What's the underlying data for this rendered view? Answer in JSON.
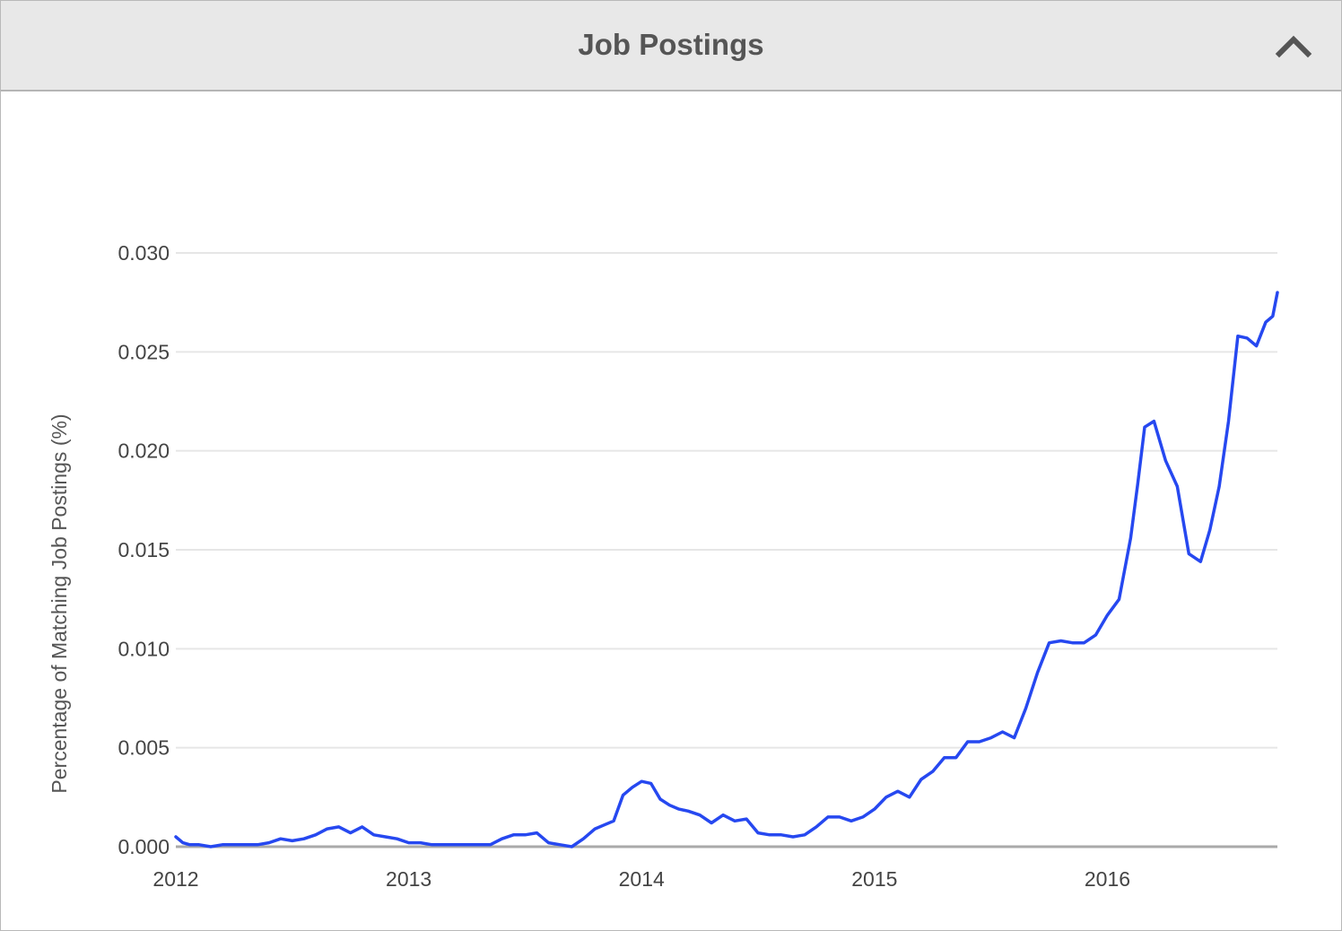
{
  "header": {
    "title": "Job Postings",
    "collapse_icon": "chevron-up-icon"
  },
  "colors": {
    "line": "#2648f0",
    "grid": "#e6e6e6",
    "axis": "#aaaaaa",
    "header_bg": "#e8e8e8"
  },
  "chart_data": {
    "type": "line",
    "title": "",
    "xlabel": "",
    "ylabel": "Percentage of Matching Job Postings (%)",
    "xlim": [
      2012.0,
      2016.73
    ],
    "ylim": [
      0,
      0.03
    ],
    "x_ticks": [
      "2012",
      "2013",
      "2014",
      "2015",
      "2016"
    ],
    "y_ticks": [
      "0.000",
      "0.005",
      "0.010",
      "0.015",
      "0.020",
      "0.025",
      "0.030"
    ],
    "grid": true,
    "legend": "none",
    "series": [
      {
        "x": [
          2012.0,
          2012.03,
          2012.06,
          2012.1,
          2012.15,
          2012.2,
          2012.25,
          2012.3,
          2012.35,
          2012.4,
          2012.45,
          2012.5,
          2012.55,
          2012.6,
          2012.65,
          2012.7,
          2012.75,
          2012.8,
          2012.85,
          2012.9,
          2012.95,
          2013.0,
          2013.05,
          2013.1,
          2013.15,
          2013.2,
          2013.25,
          2013.3,
          2013.35,
          2013.4,
          2013.45,
          2013.5,
          2013.55,
          2013.6,
          2013.65,
          2013.7,
          2013.75,
          2013.8,
          2013.84,
          2013.88,
          2013.92,
          2013.96,
          2014.0,
          2014.04,
          2014.08,
          2014.12,
          2014.16,
          2014.2,
          2014.25,
          2014.3,
          2014.35,
          2014.4,
          2014.45,
          2014.5,
          2014.55,
          2014.6,
          2014.65,
          2014.7,
          2014.75,
          2014.8,
          2014.85,
          2014.9,
          2014.95,
          2015.0,
          2015.05,
          2015.1,
          2015.15,
          2015.2,
          2015.25,
          2015.3,
          2015.35,
          2015.4,
          2015.45,
          2015.5,
          2015.55,
          2015.6,
          2015.65,
          2015.7,
          2015.75,
          2015.8,
          2015.85,
          2015.9,
          2015.95,
          2016.0,
          2016.05,
          2016.1,
          2016.13,
          2016.16,
          2016.2,
          2016.25,
          2016.3,
          2016.35,
          2016.4,
          2016.44,
          2016.48,
          2016.52,
          2016.56,
          2016.6,
          2016.64,
          2016.68,
          2016.71,
          2016.73
        ],
        "y": [
          0.0005,
          0.0002,
          0.0001,
          0.0001,
          0.0,
          0.0001,
          0.0001,
          0.0001,
          0.0001,
          0.0002,
          0.0004,
          0.0003,
          0.0004,
          0.0006,
          0.0009,
          0.001,
          0.0007,
          0.001,
          0.0006,
          0.0005,
          0.0004,
          0.0002,
          0.0002,
          0.0001,
          0.0001,
          0.0001,
          0.0001,
          0.0001,
          0.0001,
          0.0004,
          0.0006,
          0.0006,
          0.0007,
          0.0002,
          0.0001,
          0.0,
          0.0004,
          0.0009,
          0.0011,
          0.0013,
          0.0026,
          0.003,
          0.0033,
          0.0032,
          0.0024,
          0.0021,
          0.0019,
          0.0018,
          0.0016,
          0.0012,
          0.0016,
          0.0013,
          0.0014,
          0.0007,
          0.0006,
          0.0006,
          0.0005,
          0.0006,
          0.001,
          0.0015,
          0.0015,
          0.0013,
          0.0015,
          0.0019,
          0.0025,
          0.0028,
          0.0025,
          0.0034,
          0.0038,
          0.0045,
          0.0045,
          0.0053,
          0.0053,
          0.0055,
          0.0058,
          0.0055,
          0.007,
          0.0088,
          0.0103,
          0.0104,
          0.0103,
          0.0103,
          0.0107,
          0.0117,
          0.0125,
          0.0156,
          0.0183,
          0.0212,
          0.0215,
          0.0195,
          0.0182,
          0.0148,
          0.0144,
          0.016,
          0.0182,
          0.0215,
          0.0258,
          0.0257,
          0.0253,
          0.0265,
          0.0268,
          0.028
        ]
      }
    ]
  }
}
